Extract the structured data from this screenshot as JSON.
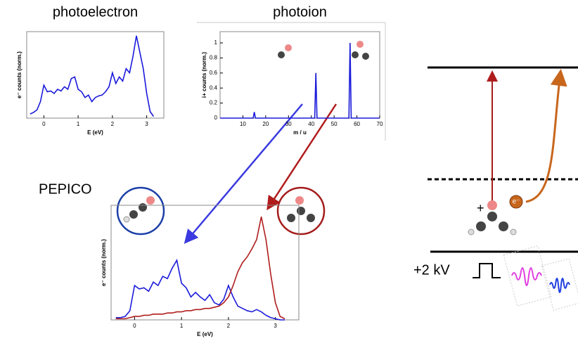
{
  "chart_data": [
    {
      "type": "line",
      "title": "photoelectron",
      "x_label": "E (eV)",
      "y_label": "e⁻ counts (norm.)",
      "x": [
        -0.4,
        -0.3,
        -0.2,
        -0.1,
        0,
        0.1,
        0.2,
        0.3,
        0.4,
        0.5,
        0.6,
        0.7,
        0.8,
        0.9,
        1.0,
        1.1,
        1.2,
        1.3,
        1.4,
        1.5,
        1.6,
        1.7,
        1.8,
        1.9,
        2.0,
        2.1,
        2.2,
        2.3,
        2.4,
        2.5,
        2.6,
        2.7,
        2.8,
        2.9,
        3.0,
        3.1,
        3.2
      ],
      "values": [
        0.05,
        0.07,
        0.1,
        0.2,
        0.4,
        0.32,
        0.33,
        0.3,
        0.35,
        0.33,
        0.38,
        0.35,
        0.48,
        0.5,
        0.35,
        0.32,
        0.25,
        0.28,
        0.2,
        0.25,
        0.27,
        0.28,
        0.32,
        0.38,
        0.55,
        0.42,
        0.5,
        0.45,
        0.6,
        0.55,
        0.75,
        1.0,
        0.8,
        0.6,
        0.3,
        0.08,
        0.02
      ],
      "color": "#1a1adb",
      "xlim": [
        -0.5,
        3.5
      ],
      "xticks": [
        0,
        1,
        2,
        3
      ],
      "ylim": [
        0,
        1.05
      ]
    },
    {
      "type": "line",
      "title": "photoion",
      "x_label": "m / u",
      "y_label": "i+ counts (norm.)",
      "x": [
        0,
        14.5,
        15,
        15.5,
        41.5,
        42,
        42.5,
        56.5,
        57,
        57.5,
        70
      ],
      "values": [
        0,
        0,
        0.08,
        0,
        0,
        0.6,
        0,
        0,
        1,
        0,
        0
      ],
      "color": "#1a1adb",
      "xlim": [
        0,
        70
      ],
      "xticks": [
        10,
        20,
        30,
        40,
        50,
        60,
        70
      ],
      "ylim": [
        0,
        1.15
      ],
      "yticks": [
        0,
        0.2,
        0.4,
        0.6,
        0.8,
        1
      ]
    },
    {
      "type": "line",
      "x_label": "E (eV)",
      "y_label": "e⁻ counts (norm.)",
      "x": [
        -0.4,
        -0.3,
        -0.2,
        -0.1,
        0,
        0.1,
        0.2,
        0.3,
        0.4,
        0.5,
        0.6,
        0.7,
        0.8,
        0.9,
        1.0,
        1.1,
        1.2,
        1.3,
        1.4,
        1.5,
        1.6,
        1.7,
        1.8,
        1.9,
        2.0,
        2.1,
        2.2,
        2.3,
        2.4,
        2.5,
        2.6,
        2.7,
        2.8,
        2.9,
        3.0,
        3.1,
        3.2
      ],
      "series": [
        {
          "color": "#1a1adb",
          "values": [
            0.02,
            0.02,
            0.03,
            0.08,
            0.3,
            0.27,
            0.28,
            0.25,
            0.33,
            0.3,
            0.38,
            0.36,
            0.45,
            0.52,
            0.32,
            0.28,
            0.2,
            0.24,
            0.2,
            0.17,
            0.22,
            0.15,
            0.13,
            0.18,
            0.3,
            0.2,
            0.12,
            0.1,
            0.08,
            0.07,
            0.09,
            0.07,
            0.04,
            0.02,
            0.01,
            0,
            0
          ]
        },
        {
          "color": "#b01c1c",
          "values": [
            0.01,
            0.01,
            0.01,
            0.02,
            0.03,
            0.03,
            0.04,
            0.04,
            0.05,
            0.05,
            0.05,
            0.06,
            0.06,
            0.07,
            0.07,
            0.08,
            0.08,
            0.09,
            0.09,
            0.1,
            0.1,
            0.11,
            0.12,
            0.15,
            0.2,
            0.3,
            0.42,
            0.5,
            0.55,
            0.62,
            0.7,
            0.9,
            0.7,
            0.4,
            0.15,
            0.03,
            0.01
          ]
        }
      ],
      "xlim": [
        -0.5,
        3.5
      ],
      "xticks": [
        0,
        1,
        2,
        3
      ],
      "ylim": [
        0,
        1
      ]
    }
  ],
  "labels": {
    "pepico": "PEPICO",
    "voltage": "+2 kV",
    "cation": "+",
    "electron": "e⁻"
  }
}
